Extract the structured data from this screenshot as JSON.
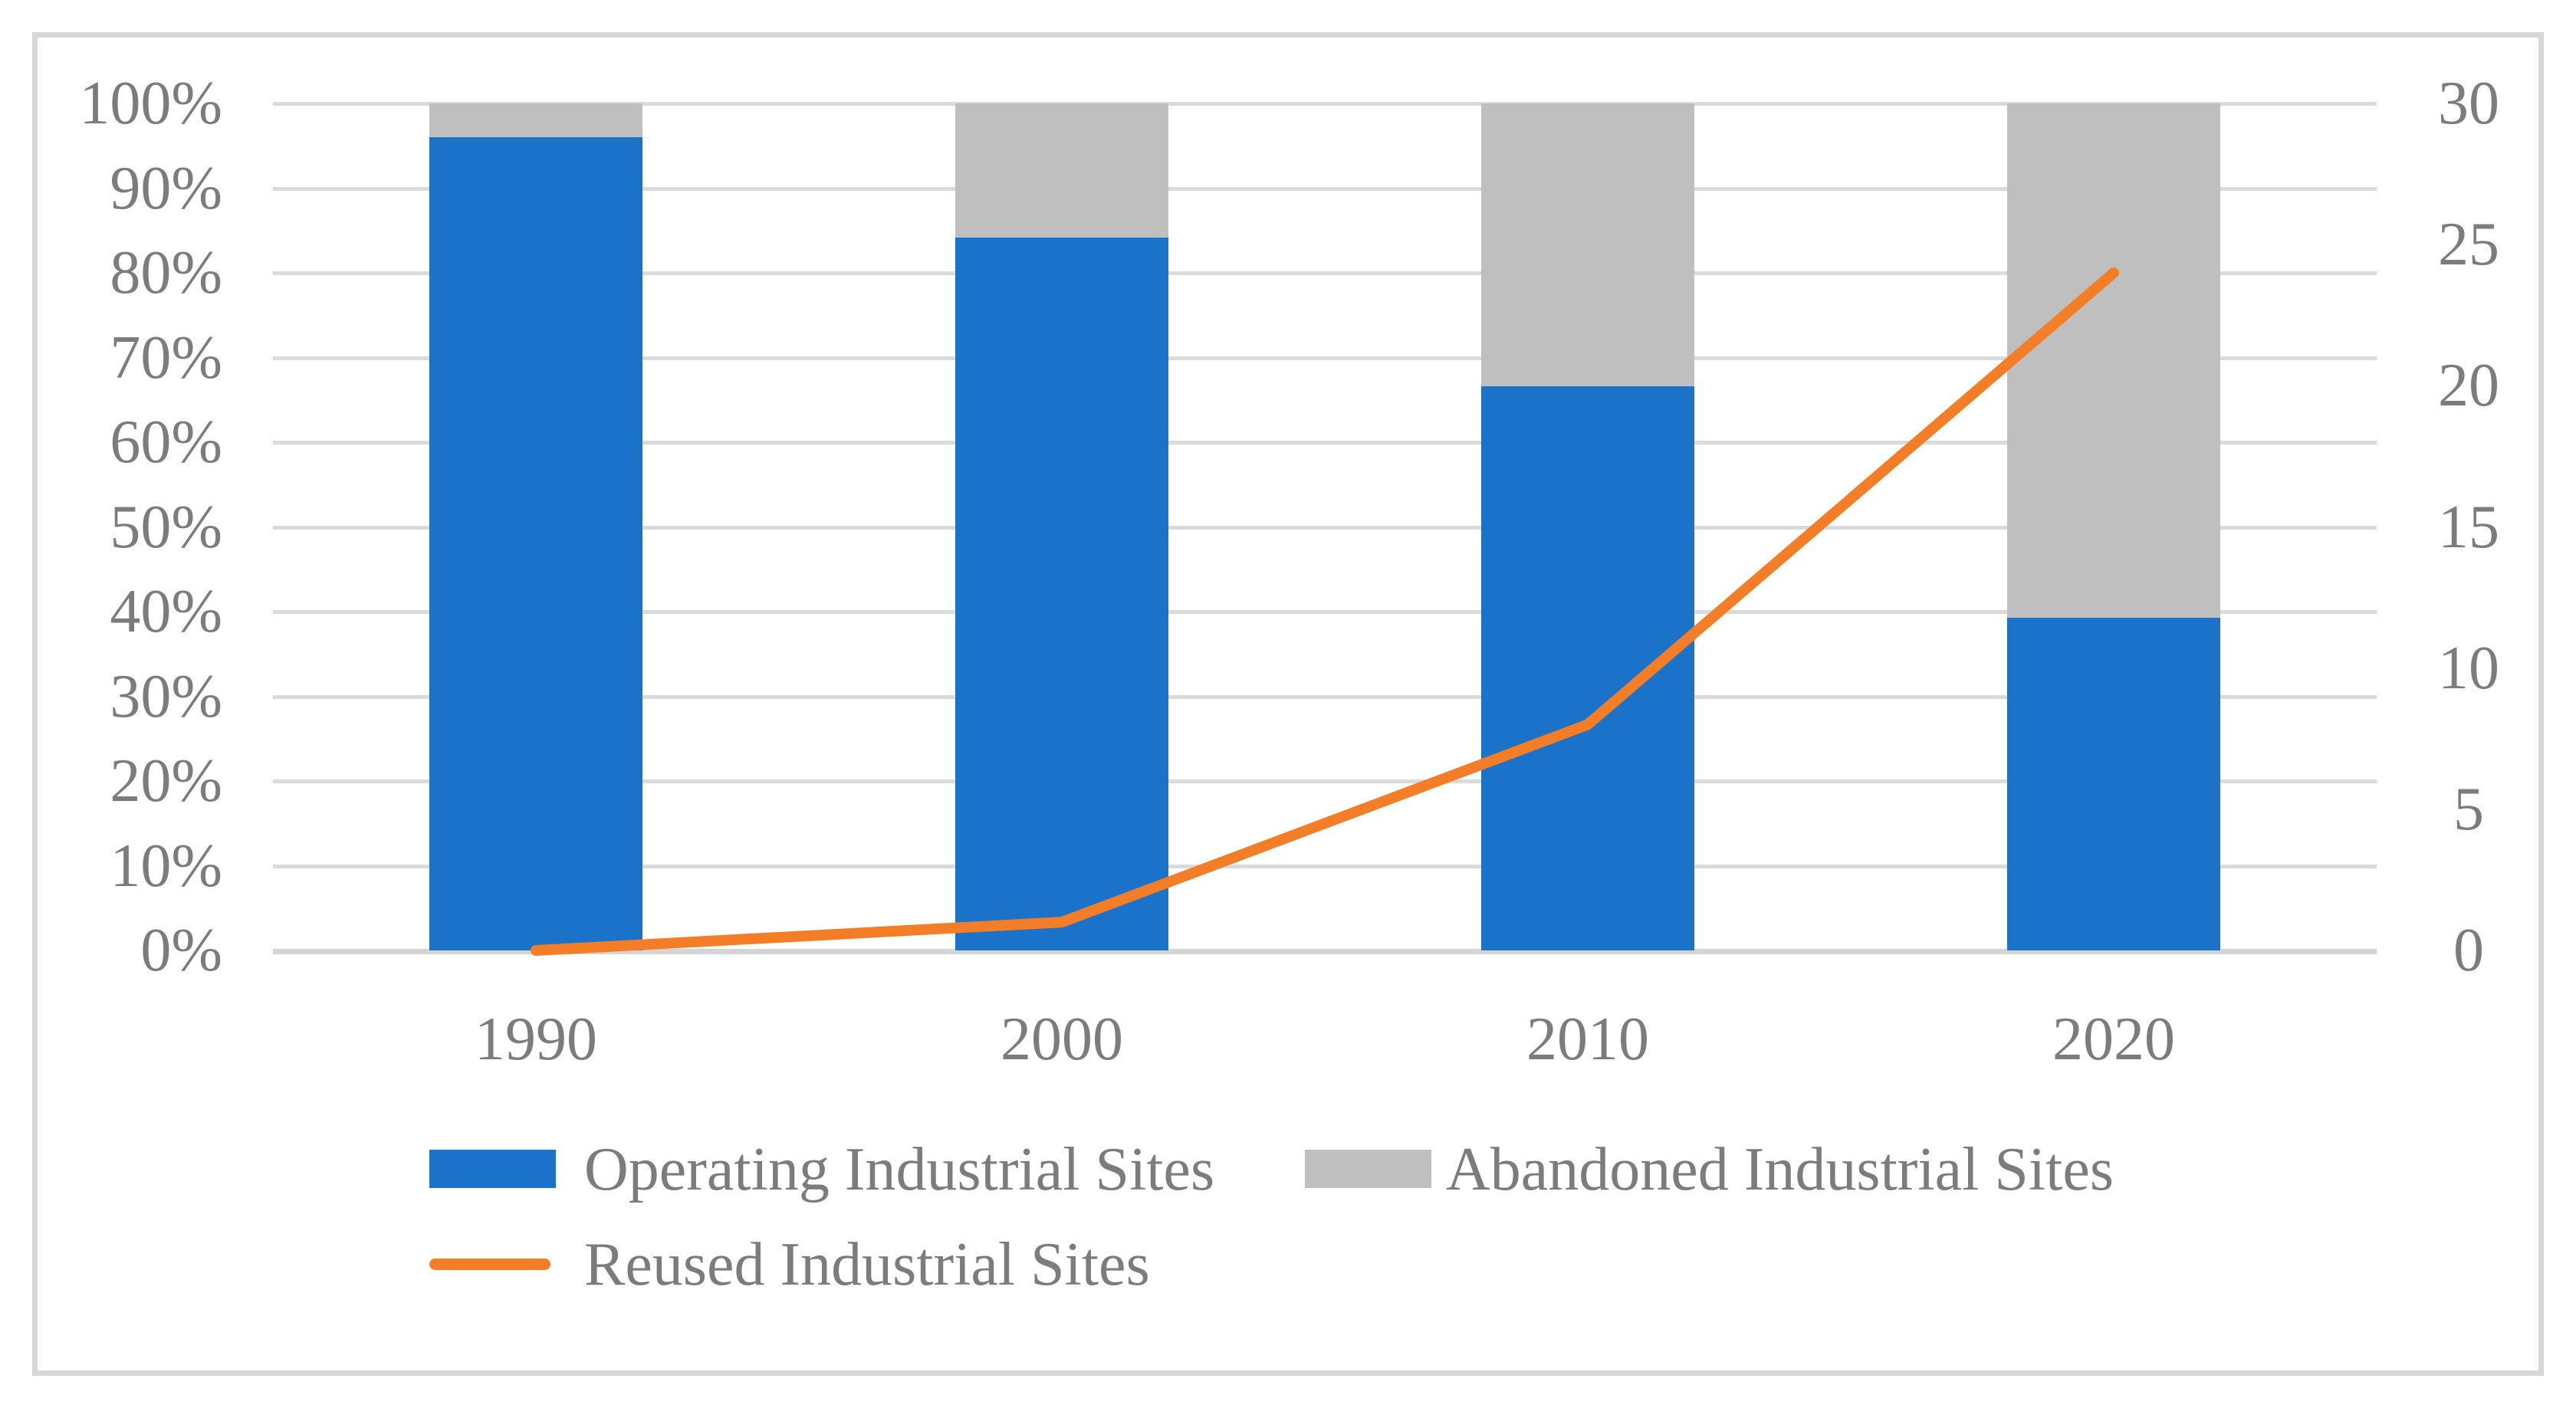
{
  "chart_data": {
    "type": "combo_stacked_bar_line",
    "title": "",
    "categories": [
      "1990",
      "2000",
      "2010",
      "2020"
    ],
    "left_axis": {
      "unit": "%",
      "min": 0,
      "max": 100,
      "step": 10,
      "tick_labels": [
        "0%",
        "10%",
        "20%",
        "30%",
        "40%",
        "50%",
        "60%",
        "70%",
        "80%",
        "90%",
        "100%"
      ]
    },
    "right_axis": {
      "min": 0,
      "max": 30,
      "step": 5,
      "tick_labels": [
        "0",
        "5",
        "10",
        "15",
        "20",
        "25",
        "30"
      ]
    },
    "grid": "horizontal",
    "legend_position": "bottom",
    "series": [
      {
        "name": "Operating Industrial Sites",
        "type": "bar",
        "stacked": true,
        "color": "#1a73c8",
        "values_percent": [
          96.0,
          84.2,
          66.6,
          39.3
        ]
      },
      {
        "name": "Abandoned Industrial Sites",
        "type": "bar",
        "stacked": true,
        "color": "#bfbfbf",
        "values_percent": [
          4.0,
          15.8,
          33.4,
          60.7
        ]
      },
      {
        "name": "Reused Industrial Sites",
        "type": "line",
        "axis": "right",
        "color": "#f37e27",
        "values": [
          0,
          1,
          8,
          24
        ]
      }
    ]
  }
}
